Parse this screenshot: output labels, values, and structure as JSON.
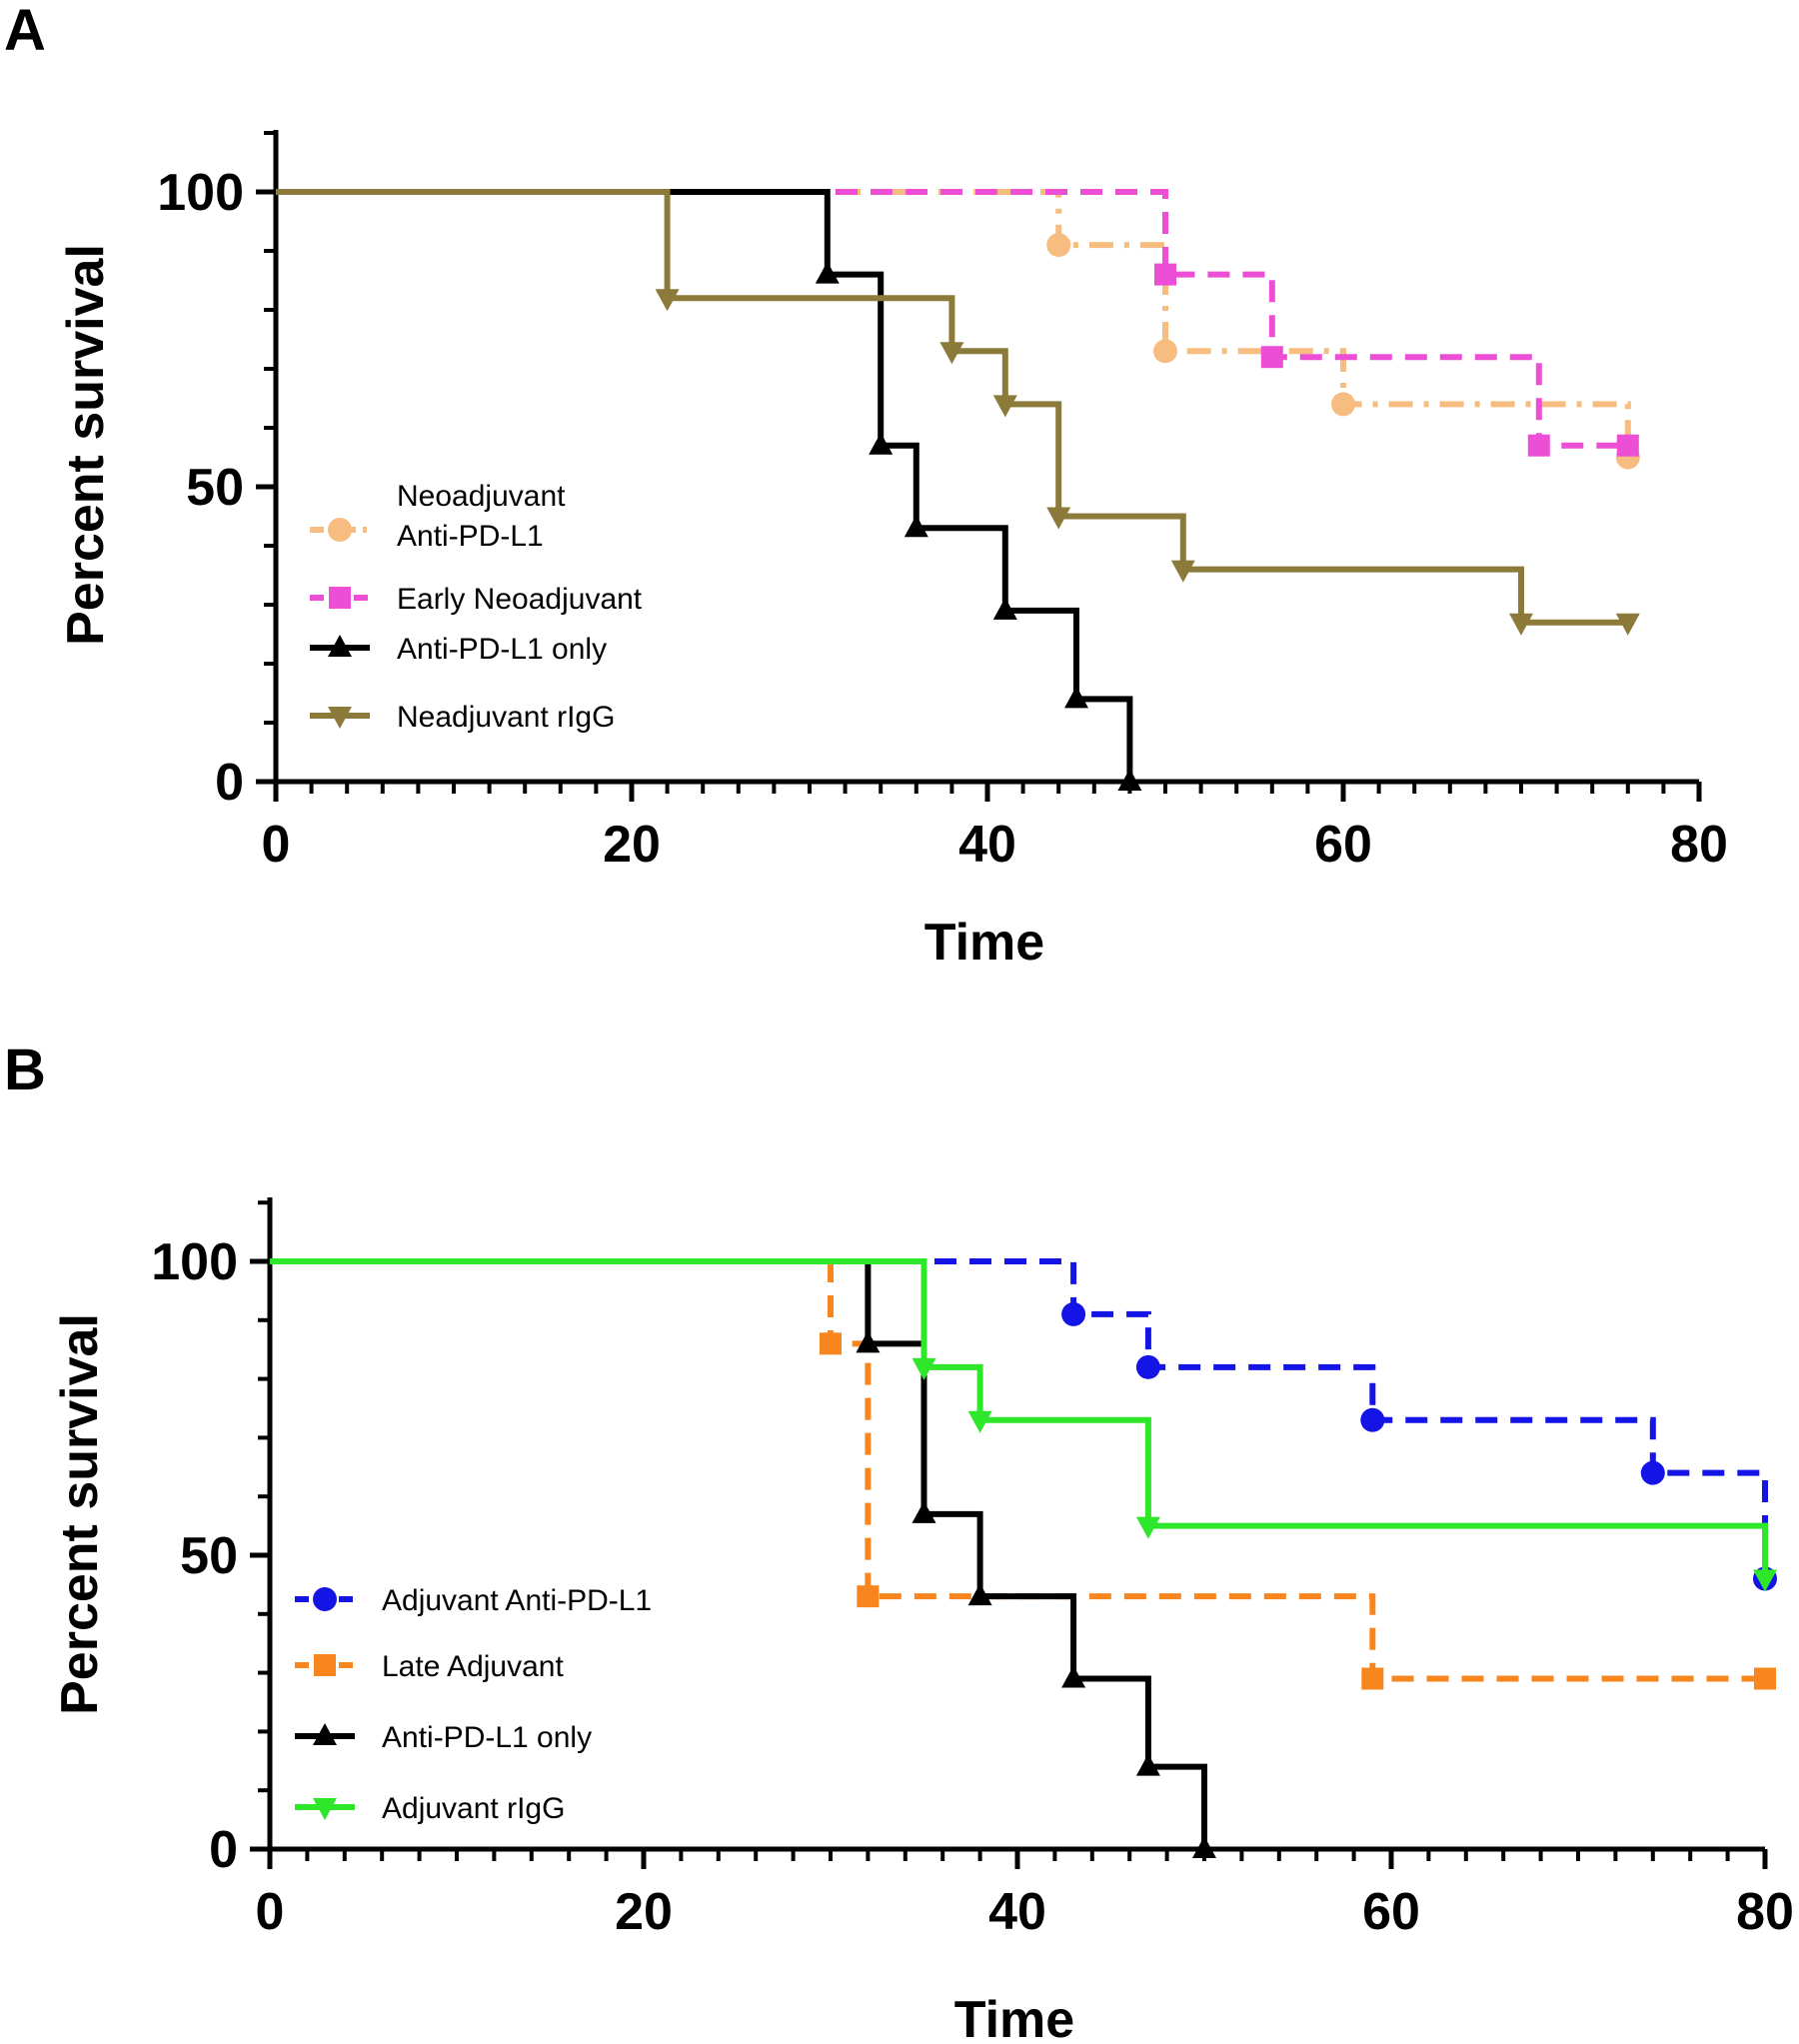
{
  "panels": [
    {
      "id": "A",
      "panel_label": "A",
      "xlabel": "Time",
      "ylabel": "Percent survival",
      "xlim": [
        0,
        80
      ],
      "ylim": [
        0,
        110
      ],
      "xticks": [
        "0",
        "20",
        "40",
        "60",
        "80"
      ],
      "yticks": [
        "0",
        "50",
        "100"
      ],
      "legend": [
        {
          "series": 0,
          "lines": [
            "Neoadjuvant",
            "Anti-PD-L1"
          ]
        },
        {
          "series": 1,
          "lines": [
            "Early Neoadjuvant"
          ]
        },
        {
          "series": 2,
          "lines": [
            "Anti-PD-L1 only"
          ]
        },
        {
          "series": 3,
          "lines": [
            "Neadjuvant rIgG"
          ]
        }
      ]
    },
    {
      "id": "B",
      "panel_label": "B",
      "xlabel": "Time",
      "ylabel": "Percent survival",
      "xlim": [
        0,
        80
      ],
      "ylim": [
        0,
        110
      ],
      "xticks": [
        "0",
        "20",
        "40",
        "60",
        "80"
      ],
      "yticks": [
        "0",
        "50",
        "100"
      ],
      "legend": [
        {
          "series": 0,
          "lines": [
            "Adjuvant Anti-PD-L1"
          ]
        },
        {
          "series": 1,
          "lines": [
            "Late Adjuvant"
          ]
        },
        {
          "series": 2,
          "lines": [
            "Anti-PD-L1 only"
          ]
        },
        {
          "series": 3,
          "lines": [
            "Adjuvant rIgG"
          ]
        }
      ]
    }
  ],
  "chart_data": [
    {
      "type": "line",
      "subtype": "kaplan-meier step",
      "panel": "A",
      "title": "",
      "xlabel": "Time",
      "ylabel": "Percent survival",
      "xlim": [
        0,
        80
      ],
      "ylim": [
        0,
        110
      ],
      "series": [
        {
          "name": "Neoadjuvant Anti-PD-L1",
          "color": "#f7bc80",
          "dash": "dashdot",
          "marker": "circle",
          "steps": [
            [
              0,
              100
            ],
            [
              44,
              91
            ],
            [
              50,
              73
            ],
            [
              60,
              64
            ],
            [
              76,
              55
            ]
          ],
          "markers": [
            [
              44,
              91
            ],
            [
              50,
              73
            ],
            [
              60,
              64
            ],
            [
              76,
              55
            ]
          ]
        },
        {
          "name": "Early Neoadjuvant",
          "color": "#ec4fd6",
          "dash": "dash",
          "marker": "square",
          "steps": [
            [
              0,
              100
            ],
            [
              50,
              86
            ],
            [
              56,
              72
            ],
            [
              71,
              57
            ],
            [
              76,
              57
            ]
          ],
          "markers": [
            [
              50,
              86
            ],
            [
              56,
              72
            ],
            [
              71,
              57
            ],
            [
              76,
              57
            ]
          ]
        },
        {
          "name": "Anti-PD-L1 only",
          "color": "#000000",
          "dash": "solid",
          "marker": "triangle-up",
          "steps": [
            [
              0,
              100
            ],
            [
              31,
              86
            ],
            [
              34,
              57
            ],
            [
              36,
              43
            ],
            [
              41,
              29
            ],
            [
              45,
              14
            ],
            [
              48,
              0
            ]
          ],
          "markers": [
            [
              31,
              86
            ],
            [
              34,
              57
            ],
            [
              36,
              43
            ],
            [
              41,
              29
            ],
            [
              45,
              14
            ],
            [
              48,
              0
            ]
          ]
        },
        {
          "name": "Neadjuvant rIgG",
          "color": "#8b7a3a",
          "dash": "solid",
          "marker": "triangle-down",
          "steps": [
            [
              0,
              100
            ],
            [
              22,
              82
            ],
            [
              38,
              73
            ],
            [
              41,
              64
            ],
            [
              44,
              45
            ],
            [
              51,
              36
            ],
            [
              70,
              27
            ],
            [
              76,
              27
            ]
          ],
          "markers": [
            [
              22,
              82
            ],
            [
              38,
              73
            ],
            [
              41,
              64
            ],
            [
              44,
              45
            ],
            [
              51,
              36
            ],
            [
              70,
              27
            ],
            [
              76,
              27
            ]
          ]
        }
      ]
    },
    {
      "type": "line",
      "subtype": "kaplan-meier step",
      "panel": "B",
      "title": "",
      "xlabel": "Time",
      "ylabel": "Percent survival",
      "xlim": [
        0,
        80
      ],
      "ylim": [
        0,
        110
      ],
      "series": [
        {
          "name": "Adjuvant Anti-PD-L1",
          "color": "#1414e6",
          "dash": "dash",
          "marker": "circle",
          "steps": [
            [
              0,
              100
            ],
            [
              43,
              91
            ],
            [
              47,
              82
            ],
            [
              59,
              73
            ],
            [
              74,
              64
            ],
            [
              80,
              46
            ]
          ],
          "markers": [
            [
              43,
              91
            ],
            [
              47,
              82
            ],
            [
              59,
              73
            ],
            [
              74,
              64
            ],
            [
              80,
              46
            ]
          ]
        },
        {
          "name": "Late Adjuvant",
          "color": "#f7861f",
          "dash": "dash",
          "marker": "square",
          "steps": [
            [
              0,
              100
            ],
            [
              30,
              86
            ],
            [
              32,
              43
            ],
            [
              59,
              29
            ],
            [
              80,
              29
            ]
          ],
          "markers": [
            [
              30,
              86
            ],
            [
              32,
              43
            ],
            [
              59,
              29
            ],
            [
              80,
              29
            ]
          ]
        },
        {
          "name": "Anti-PD-L1 only",
          "color": "#000000",
          "dash": "solid",
          "marker": "triangle-up",
          "steps": [
            [
              0,
              100
            ],
            [
              32,
              86
            ],
            [
              35,
              57
            ],
            [
              38,
              43
            ],
            [
              43,
              29
            ],
            [
              47,
              14
            ],
            [
              50,
              0
            ]
          ],
          "markers": [
            [
              32,
              86
            ],
            [
              35,
              57
            ],
            [
              38,
              43
            ],
            [
              43,
              29
            ],
            [
              47,
              14
            ],
            [
              50,
              0
            ]
          ]
        },
        {
          "name": "Adjuvant rIgG",
          "color": "#2ee62a",
          "dash": "solid",
          "marker": "triangle-down",
          "steps": [
            [
              0,
              100
            ],
            [
              35,
              82
            ],
            [
              38,
              73
            ],
            [
              47,
              55
            ],
            [
              80,
              46
            ]
          ],
          "markers": [
            [
              35,
              82
            ],
            [
              38,
              73
            ],
            [
              47,
              55
            ],
            [
              80,
              46
            ]
          ]
        }
      ]
    }
  ]
}
